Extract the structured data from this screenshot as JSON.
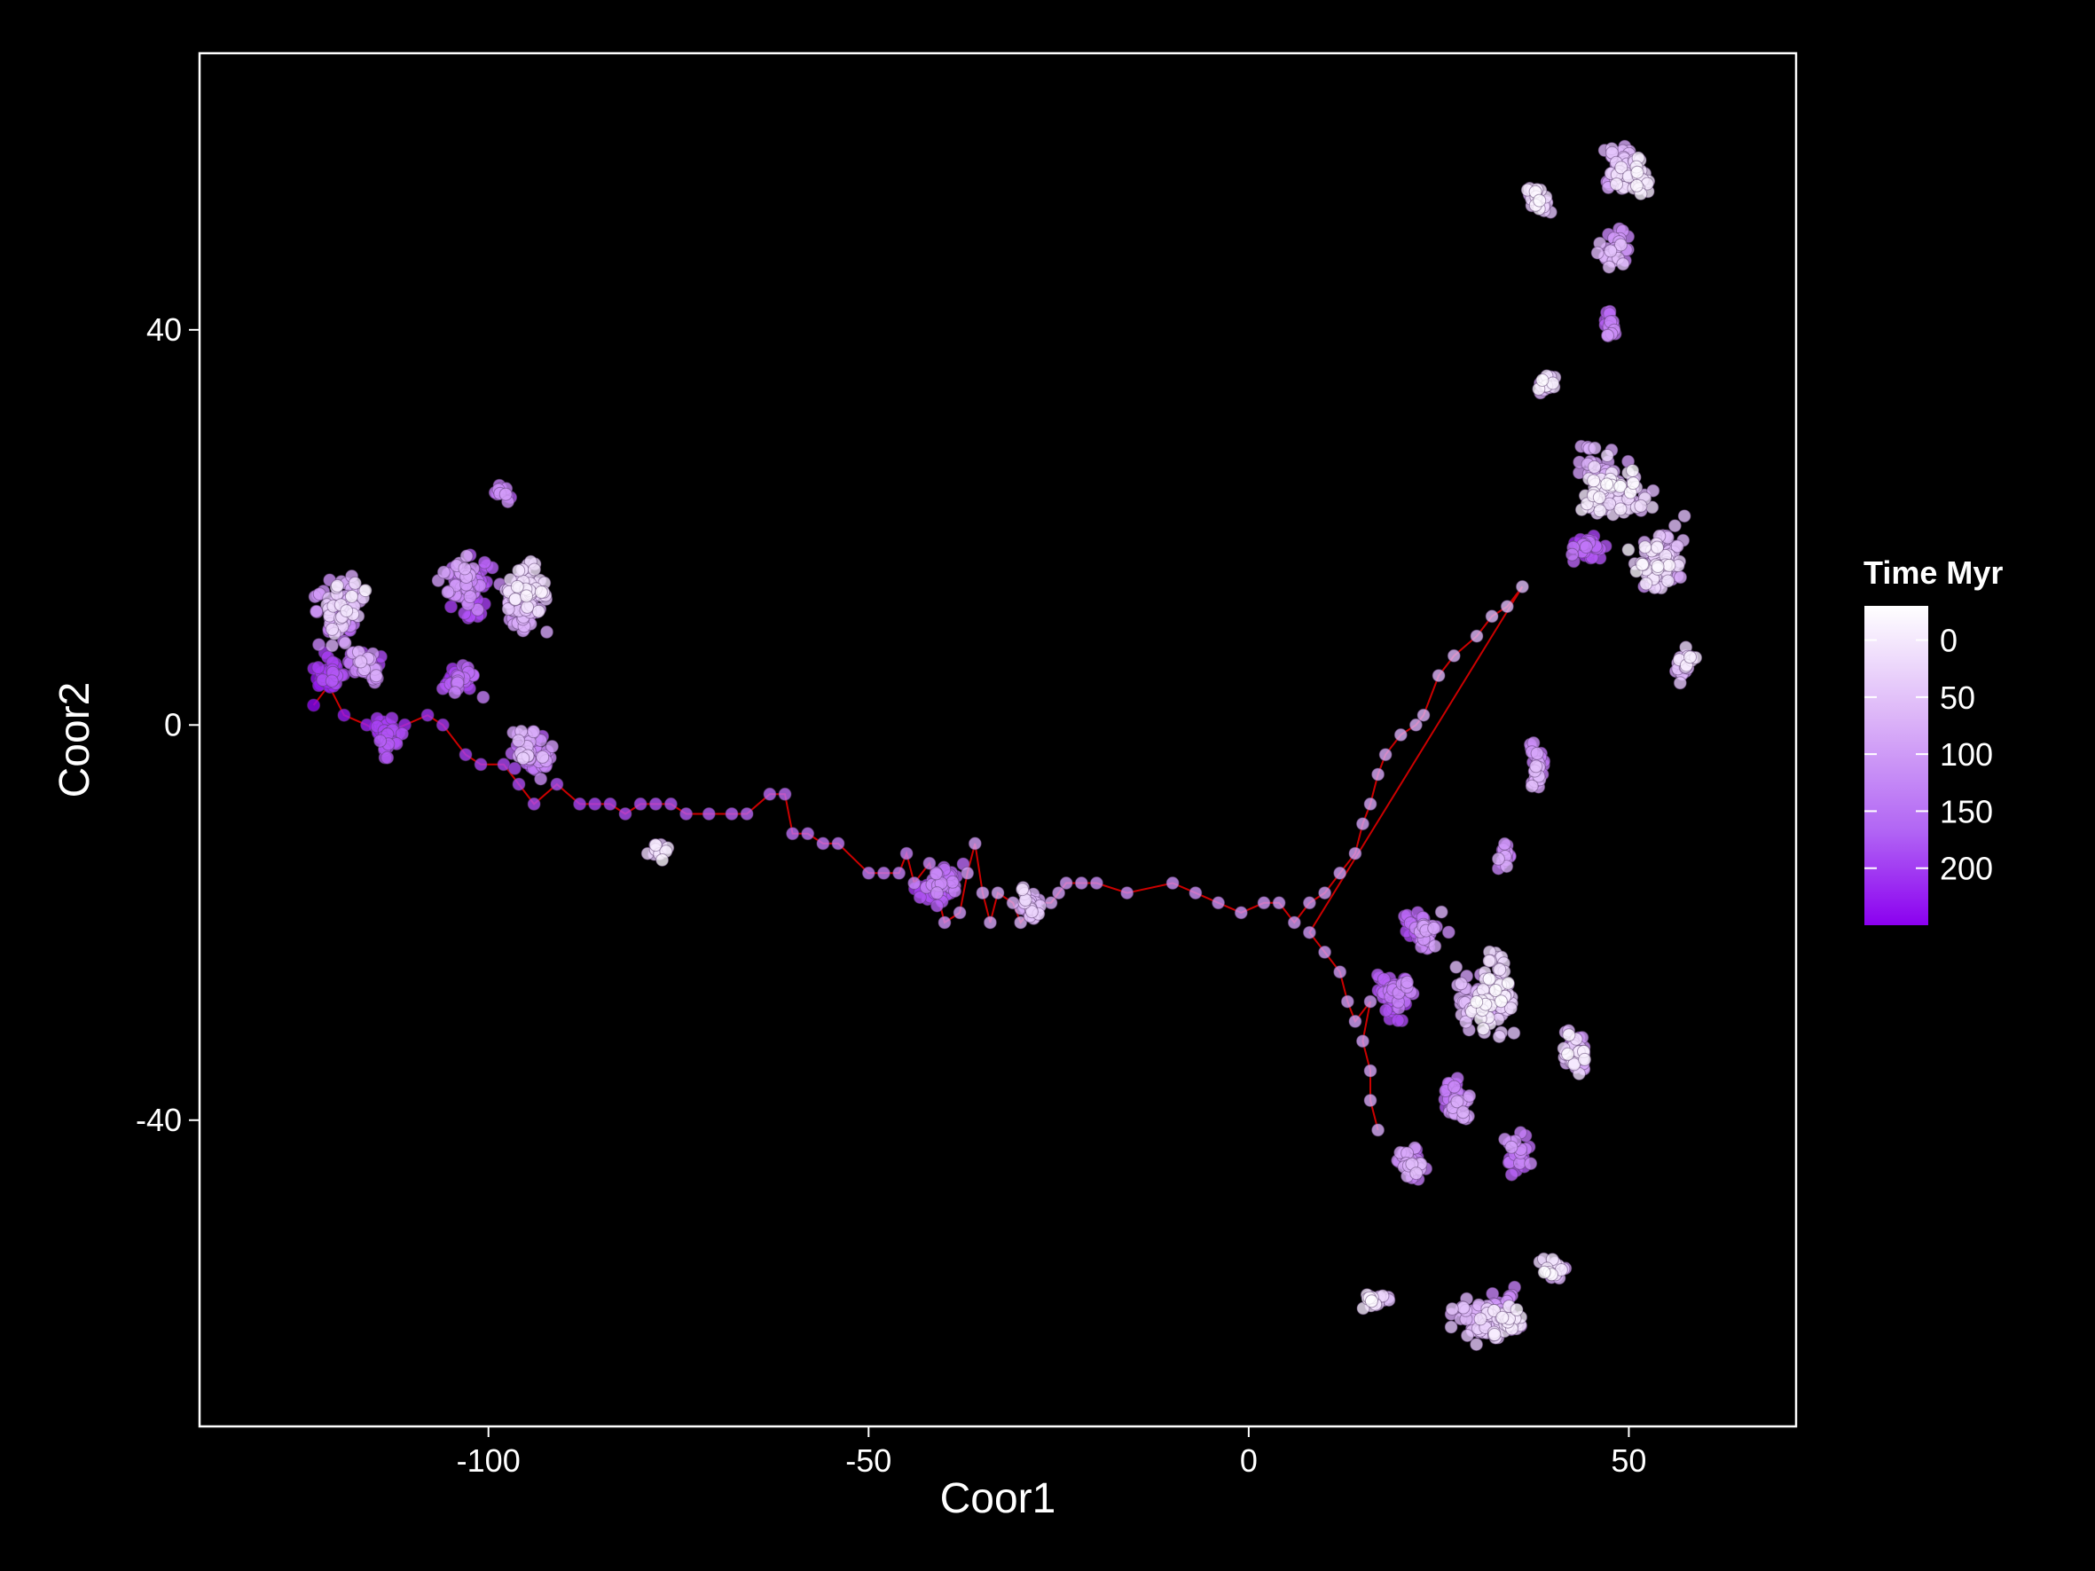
{
  "chart_data": {
    "type": "scatter",
    "xlabel": "Coor1",
    "ylabel": "Coor2",
    "xlim": [
      -138,
      72
    ],
    "ylim": [
      -71,
      68
    ],
    "xticks": [
      -100,
      -50,
      0,
      50
    ],
    "xtick_labels": [
      "-100",
      "-50",
      "0",
      "50"
    ],
    "yticks": [
      40,
      0,
      -40
    ],
    "ytick_labels": [
      "40",
      "0",
      "-40"
    ],
    "grid": false,
    "background": "#000000",
    "frame_color": "#ffffff",
    "path_color": "#cc0000",
    "legend": {
      "title": "Time Myr",
      "position": "right",
      "ticks": [
        0,
        50,
        100,
        150,
        200
      ],
      "tick_labels": [
        "0",
        "50",
        "100",
        "150",
        "200"
      ],
      "range": [
        -30,
        250
      ],
      "color_low": "#ffffff",
      "color_high": "#8b00f0"
    },
    "series": [
      {
        "points": [
          [
            -123,
            2,
            240
          ],
          [
            -121,
            4,
            228
          ],
          [
            -119,
            1,
            220
          ],
          [
            -116,
            0,
            212
          ],
          [
            -114,
            -1,
            205
          ],
          [
            -111,
            0,
            198
          ],
          [
            -108,
            1,
            192
          ],
          [
            -106,
            0,
            186
          ],
          [
            -103,
            -3,
            180
          ],
          [
            -101,
            -4,
            176
          ],
          [
            -98,
            -4,
            172
          ],
          [
            -96,
            -6,
            168
          ],
          [
            -94,
            -8,
            164
          ],
          [
            -91,
            -6,
            160
          ],
          [
            -88,
            -8,
            175
          ],
          [
            -86,
            -8,
            172
          ],
          [
            -84,
            -8,
            168
          ],
          [
            -82,
            -9,
            165
          ],
          [
            -80,
            -8,
            162
          ],
          [
            -78,
            -8,
            158
          ],
          [
            -76,
            -8,
            155
          ],
          [
            -74,
            -9,
            150
          ],
          [
            -71,
            -9,
            146
          ],
          [
            -68,
            -9,
            142
          ],
          [
            -66,
            -9,
            138
          ],
          [
            -63,
            -7,
            133
          ],
          [
            -61,
            -7,
            130
          ],
          [
            -60,
            -11,
            126
          ],
          [
            -58,
            -11,
            122
          ],
          [
            -56,
            -12,
            118
          ],
          [
            -54,
            -12,
            116
          ],
          [
            -50,
            -15,
            112
          ],
          [
            -48,
            -15,
            110
          ],
          [
            -46,
            -15,
            107
          ],
          [
            -45,
            -13,
            104
          ],
          [
            -44,
            -16,
            100
          ],
          [
            -42,
            -14,
            96
          ],
          [
            -41,
            -17,
            92
          ],
          [
            -40,
            -20,
            86
          ],
          [
            -38,
            -19,
            80
          ],
          [
            -37,
            -15,
            76
          ],
          [
            -36,
            -12,
            72
          ],
          [
            -35,
            -17,
            68
          ],
          [
            -34,
            -20,
            64
          ],
          [
            -33,
            -17,
            60
          ],
          [
            -31,
            -18,
            56
          ],
          [
            -30,
            -20,
            50
          ],
          [
            -28,
            -18,
            45
          ],
          [
            -26,
            -18,
            60
          ],
          [
            -25,
            -17,
            70
          ],
          [
            -24,
            -16,
            80
          ],
          [
            -22,
            -16,
            86
          ],
          [
            -20,
            -16,
            90
          ],
          [
            -16,
            -17,
            92
          ],
          [
            -10,
            -16,
            90
          ],
          [
            -7,
            -17,
            88
          ],
          [
            -4,
            -18,
            86
          ],
          [
            -1,
            -19,
            84
          ],
          [
            2,
            -18,
            82
          ],
          [
            4,
            -18,
            80
          ],
          [
            6,
            -20,
            78
          ],
          [
            8,
            -18,
            76
          ],
          [
            10,
            -17,
            74
          ],
          [
            12,
            -15,
            72
          ],
          [
            14,
            -13,
            70
          ],
          [
            15,
            -10,
            68
          ],
          [
            16,
            -8,
            64
          ],
          [
            17,
            -5,
            62
          ],
          [
            18,
            -3,
            60
          ],
          [
            20,
            -1,
            56
          ],
          [
            22,
            0,
            54
          ],
          [
            23,
            1,
            52
          ],
          [
            25,
            5,
            50
          ],
          [
            27,
            7,
            48
          ],
          [
            30,
            9,
            46
          ],
          [
            32,
            11,
            44
          ],
          [
            34,
            12,
            42
          ],
          [
            36,
            14,
            40
          ],
          [
            8,
            -21,
            80
          ],
          [
            10,
            -23,
            78
          ],
          [
            12,
            -25,
            76
          ],
          [
            13,
            -28,
            74
          ],
          [
            14,
            -30,
            72
          ],
          [
            16,
            -28,
            78
          ],
          [
            15,
            -32,
            70
          ],
          [
            16,
            -35,
            66
          ],
          [
            16,
            -38,
            62
          ],
          [
            17,
            -41,
            58
          ]
        ]
      }
    ],
    "clusters": [
      {
        "cx": -119,
        "cy": 11,
        "rx": 6,
        "ry": 6,
        "n": 90,
        "tmin": -10,
        "tmax": 140
      },
      {
        "cx": -121,
        "cy": 5,
        "rx": 4,
        "ry": 3,
        "n": 40,
        "tmin": 150,
        "tmax": 240
      },
      {
        "cx": -116,
        "cy": 6,
        "rx": 5,
        "ry": 4,
        "n": 40,
        "tmin": 40,
        "tmax": 170
      },
      {
        "cx": -114,
        "cy": -1,
        "rx": 4,
        "ry": 3,
        "n": 50,
        "tmin": 150,
        "tmax": 220
      },
      {
        "cx": -103,
        "cy": 14,
        "rx": 6,
        "ry": 5,
        "n": 90,
        "tmin": 60,
        "tmax": 190
      },
      {
        "cx": -96,
        "cy": 13,
        "rx": 6,
        "ry": 6,
        "n": 110,
        "tmin": -15,
        "tmax": 90
      },
      {
        "cx": -103,
        "cy": 5,
        "rx": 5,
        "ry": 3,
        "n": 40,
        "tmin": 110,
        "tmax": 190
      },
      {
        "cx": -95,
        "cy": -3,
        "rx": 5,
        "ry": 5,
        "n": 60,
        "tmin": 30,
        "tmax": 170
      },
      {
        "cx": -98,
        "cy": 23,
        "rx": 3,
        "ry": 2,
        "n": 12,
        "tmin": 80,
        "tmax": 140
      },
      {
        "cx": -78,
        "cy": -13,
        "rx": 2.5,
        "ry": 2,
        "n": 14,
        "tmin": -20,
        "tmax": 40
      },
      {
        "cx": -41,
        "cy": -16,
        "rx": 5,
        "ry": 3,
        "n": 60,
        "tmin": 100,
        "tmax": 200
      },
      {
        "cx": -29,
        "cy": -19,
        "rx": 3,
        "ry": 3,
        "n": 35,
        "tmin": 10,
        "tmax": 80
      },
      {
        "cx": 50,
        "cy": 56,
        "rx": 6,
        "ry": 4,
        "n": 90,
        "tmin": -20,
        "tmax": 90
      },
      {
        "cx": 38,
        "cy": 53,
        "rx": 4,
        "ry": 3,
        "n": 30,
        "tmin": -20,
        "tmax": 50
      },
      {
        "cx": 48,
        "cy": 48,
        "rx": 4,
        "ry": 4,
        "n": 30,
        "tmin": 30,
        "tmax": 110
      },
      {
        "cx": 47,
        "cy": 41,
        "rx": 2,
        "ry": 3,
        "n": 20,
        "tmin": 90,
        "tmax": 150
      },
      {
        "cx": 39,
        "cy": 35,
        "rx": 3,
        "ry": 3,
        "n": 20,
        "tmin": -20,
        "tmax": 60
      },
      {
        "cx": 48,
        "cy": 24,
        "rx": 7,
        "ry": 5,
        "n": 120,
        "tmin": -25,
        "tmax": 80
      },
      {
        "cx": 44,
        "cy": 18,
        "rx": 4,
        "ry": 3,
        "n": 40,
        "tmin": 120,
        "tmax": 200
      },
      {
        "cx": 54,
        "cy": 16,
        "rx": 6,
        "ry": 6,
        "n": 90,
        "tmin": -20,
        "tmax": 80
      },
      {
        "cx": 57,
        "cy": 6,
        "rx": 3,
        "ry": 3,
        "n": 25,
        "tmin": -10,
        "tmax": 80
      },
      {
        "cx": 38,
        "cy": -4,
        "rx": 2,
        "ry": 5,
        "n": 30,
        "tmin": 40,
        "tmax": 120
      },
      {
        "cx": 34,
        "cy": -13,
        "rx": 2,
        "ry": 3,
        "n": 15,
        "tmin": 60,
        "tmax": 130
      },
      {
        "cx": 24,
        "cy": -21,
        "rx": 5,
        "ry": 4,
        "n": 50,
        "tmin": 60,
        "tmax": 180
      },
      {
        "cx": 32,
        "cy": -27,
        "rx": 6,
        "ry": 7,
        "n": 120,
        "tmin": -25,
        "tmax": 80
      },
      {
        "cx": 20,
        "cy": -27,
        "rx": 4,
        "ry": 4,
        "n": 50,
        "tmin": 90,
        "tmax": 180
      },
      {
        "cx": 43,
        "cy": -33,
        "rx": 4,
        "ry": 4,
        "n": 45,
        "tmin": -20,
        "tmax": 90
      },
      {
        "cx": 27,
        "cy": -38,
        "rx": 5,
        "ry": 4,
        "n": 50,
        "tmin": 60,
        "tmax": 170
      },
      {
        "cx": 22,
        "cy": -44,
        "rx": 4,
        "ry": 3,
        "n": 40,
        "tmin": 40,
        "tmax": 140
      },
      {
        "cx": 35,
        "cy": -43,
        "rx": 3,
        "ry": 5,
        "n": 25,
        "tmin": 80,
        "tmax": 160
      },
      {
        "cx": 31,
        "cy": -60,
        "rx": 7,
        "ry": 4,
        "n": 130,
        "tmin": -15,
        "tmax": 110
      },
      {
        "cx": 17,
        "cy": -58,
        "rx": 3,
        "ry": 2,
        "n": 20,
        "tmin": -25,
        "tmax": 50
      },
      {
        "cx": 40,
        "cy": -55,
        "rx": 4,
        "ry": 3,
        "n": 30,
        "tmin": -20,
        "tmax": 80
      }
    ]
  }
}
